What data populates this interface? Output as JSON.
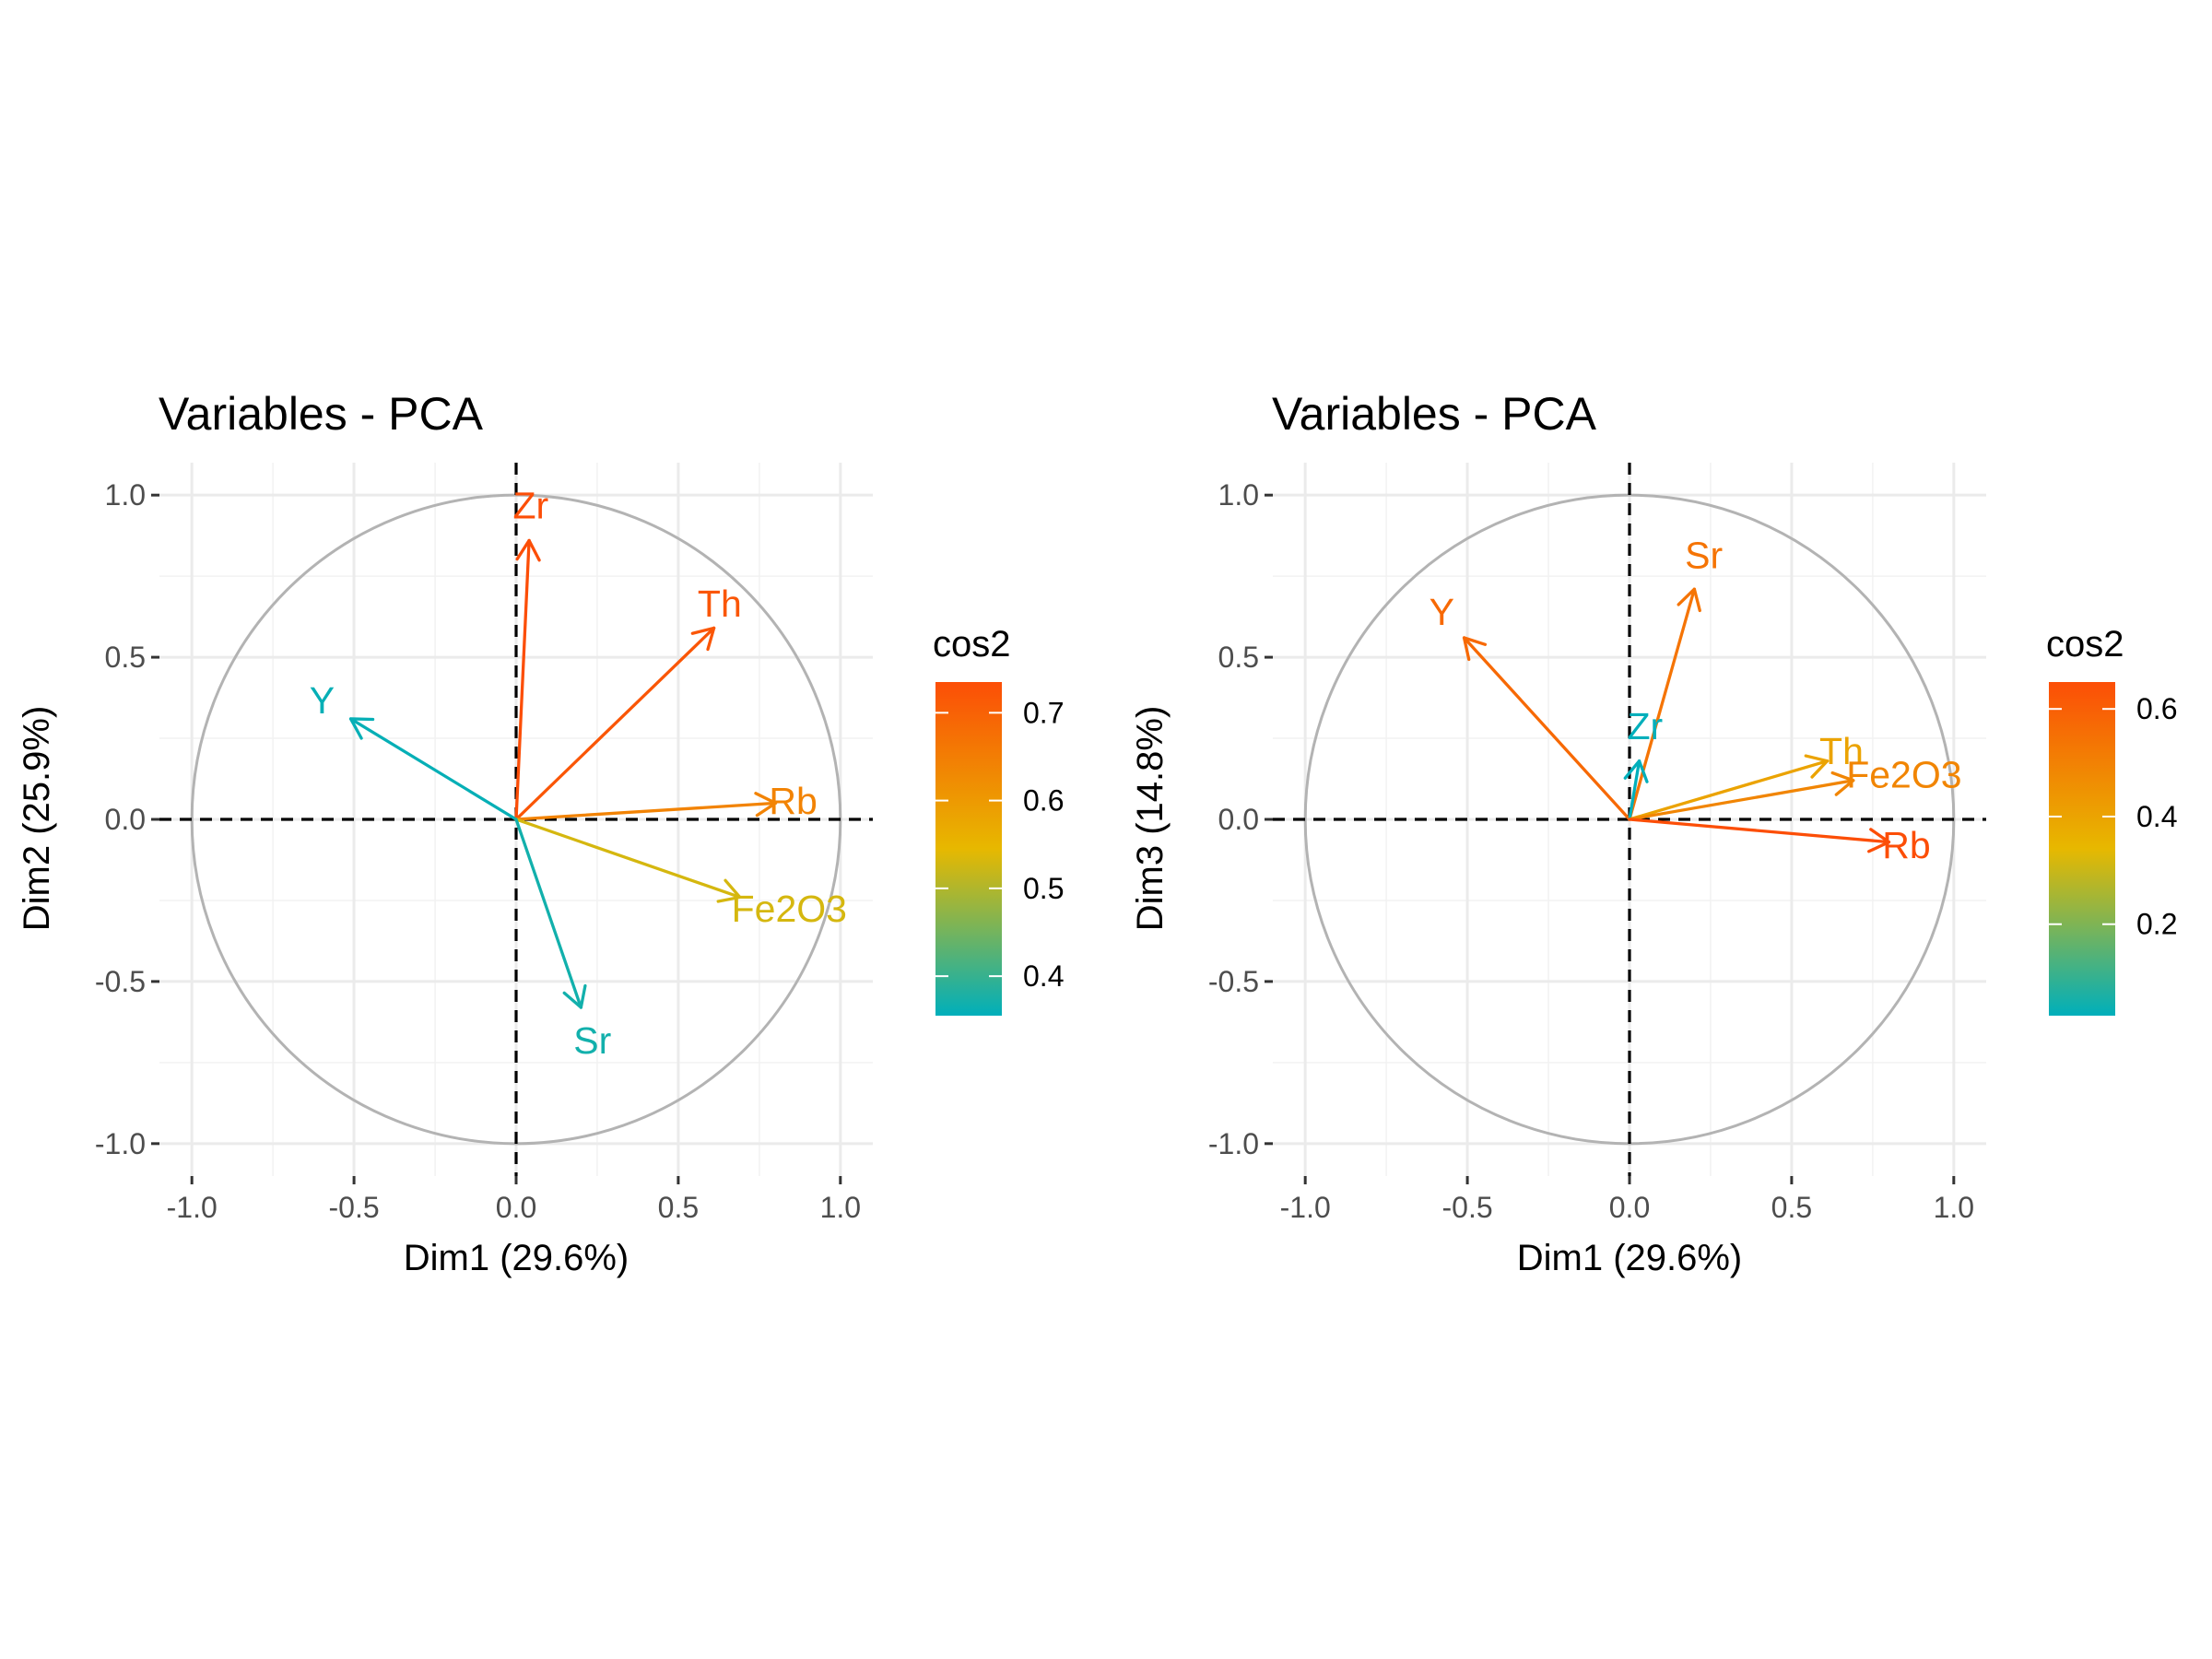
{
  "chart_data": [
    {
      "type": "scatter",
      "subtype": "pca-variable-correlation-circle",
      "title": "Variables - PCA",
      "xlabel": "Dim1 (29.6%)",
      "ylabel": "Dim2 (25.9%)",
      "xlim": [
        -1.1,
        1.1
      ],
      "ylim": [
        -1.1,
        1.1
      ],
      "xticks": [
        -1.0,
        -0.5,
        0.0,
        0.5,
        1.0
      ],
      "yticks": [
        -1.0,
        -0.5,
        0.0,
        0.5,
        1.0
      ],
      "xtick_labels": [
        "-1.0",
        "-0.5",
        "0.0",
        "0.5",
        "1.0"
      ],
      "ytick_labels": [
        "-1.0",
        "-0.5",
        "0.0",
        "0.5",
        "1.0"
      ],
      "grid": true,
      "unit_circle": true,
      "legend": {
        "title": "cos2",
        "placement": "right",
        "min": 0.355,
        "max": 0.735,
        "ticks": [
          0.4,
          0.5,
          0.6,
          0.7
        ],
        "tick_labels": [
          "0.4",
          "0.5",
          "0.6",
          "0.7"
        ],
        "low_color": "#00AFBB",
        "mid_color": "#E7B800",
        "high_color": "#FC4E07",
        "midpoint": 0.545
      },
      "variables": [
        {
          "name": "Zr",
          "x": 0.04,
          "y": 0.86,
          "cos2": 0.74
        },
        {
          "name": "Th",
          "x": 0.61,
          "y": 0.59,
          "cos2": 0.72
        },
        {
          "name": "Y",
          "x": -0.51,
          "y": 0.31,
          "cos2": 0.36
        },
        {
          "name": "Rb",
          "x": 0.8,
          "y": 0.05,
          "cos2": 0.64
        },
        {
          "name": "Fe2O3",
          "x": 0.69,
          "y": -0.24,
          "cos2": 0.53
        },
        {
          "name": "Sr",
          "x": 0.2,
          "y": -0.58,
          "cos2": 0.37
        }
      ]
    },
    {
      "type": "scatter",
      "subtype": "pca-variable-correlation-circle",
      "title": "Variables - PCA",
      "xlabel": "Dim1 (29.6%)",
      "ylabel": "Dim3 (14.8%)",
      "xlim": [
        -1.1,
        1.1
      ],
      "ylim": [
        -1.1,
        1.1
      ],
      "xticks": [
        -1.0,
        -0.5,
        0.0,
        0.5,
        1.0
      ],
      "yticks": [
        -1.0,
        -0.5,
        0.0,
        0.5,
        1.0
      ],
      "xtick_labels": [
        "-1.0",
        "-0.5",
        "0.0",
        "0.5",
        "1.0"
      ],
      "ytick_labels": [
        "-1.0",
        "-0.5",
        "0.0",
        "0.5",
        "1.0"
      ],
      "grid": true,
      "unit_circle": true,
      "legend": {
        "title": "cos2",
        "placement": "right",
        "min": 0.03,
        "max": 0.65,
        "ticks": [
          0.2,
          0.4,
          0.6
        ],
        "tick_labels": [
          "0.2",
          "0.4",
          "0.6"
        ],
        "low_color": "#00AFBB",
        "mid_color": "#E7B800",
        "high_color": "#FC4E07",
        "midpoint": 0.34
      },
      "variables": [
        {
          "name": "Sr",
          "x": 0.2,
          "y": 0.71,
          "cos2": 0.54
        },
        {
          "name": "Y",
          "x": -0.51,
          "y": 0.56,
          "cos2": 0.57
        },
        {
          "name": "Zr",
          "x": 0.03,
          "y": 0.18,
          "cos2": 0.03
        },
        {
          "name": "Th",
          "x": 0.61,
          "y": 0.18,
          "cos2": 0.4
        },
        {
          "name": "Fe2O3",
          "x": 0.69,
          "y": 0.12,
          "cos2": 0.49
        },
        {
          "name": "Rb",
          "x": 0.8,
          "y": -0.07,
          "cos2": 0.65
        }
      ]
    }
  ]
}
